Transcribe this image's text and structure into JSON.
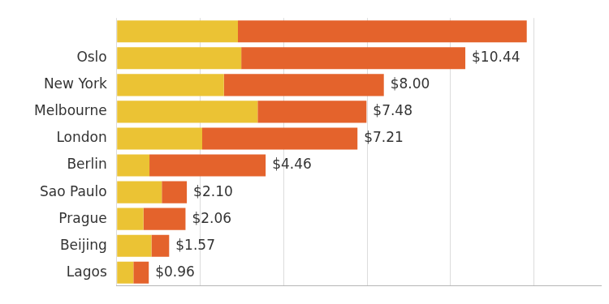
{
  "chart_data": {
    "type": "bar",
    "orientation": "horizontal",
    "stacked": true,
    "categories": [
      null,
      "Oslo",
      "New York",
      "Melbourne",
      "London",
      "Berlin",
      "Sao Paulo",
      "Prague",
      "Beijing",
      "Lagos"
    ],
    "series": [
      {
        "color": "#ebc334",
        "values": [
          3.63,
          3.73,
          3.21,
          4.22,
          2.56,
          0.98,
          1.35,
          0.8,
          1.04,
          0.5
        ]
      },
      {
        "color": "#e4632c",
        "values": [
          8.65,
          6.71,
          4.79,
          3.26,
          4.65,
          3.48,
          0.75,
          1.26,
          0.53,
          0.46
        ]
      }
    ],
    "totals": [
      null,
      10.44,
      8.0,
      7.48,
      7.21,
      4.46,
      2.1,
      2.06,
      1.57,
      0.96
    ],
    "total_labels": [
      null,
      "$10.44",
      "$8.00",
      "$7.48",
      "$7.21",
      "$4.46",
      "$2.10",
      "$2.06",
      "$1.57",
      "$0.96"
    ],
    "xlim": [
      0,
      14.5
    ],
    "xticks": [
      0,
      2.5,
      5,
      7.5,
      10,
      12.5
    ],
    "grid": true,
    "tick_labels": "y"
  }
}
